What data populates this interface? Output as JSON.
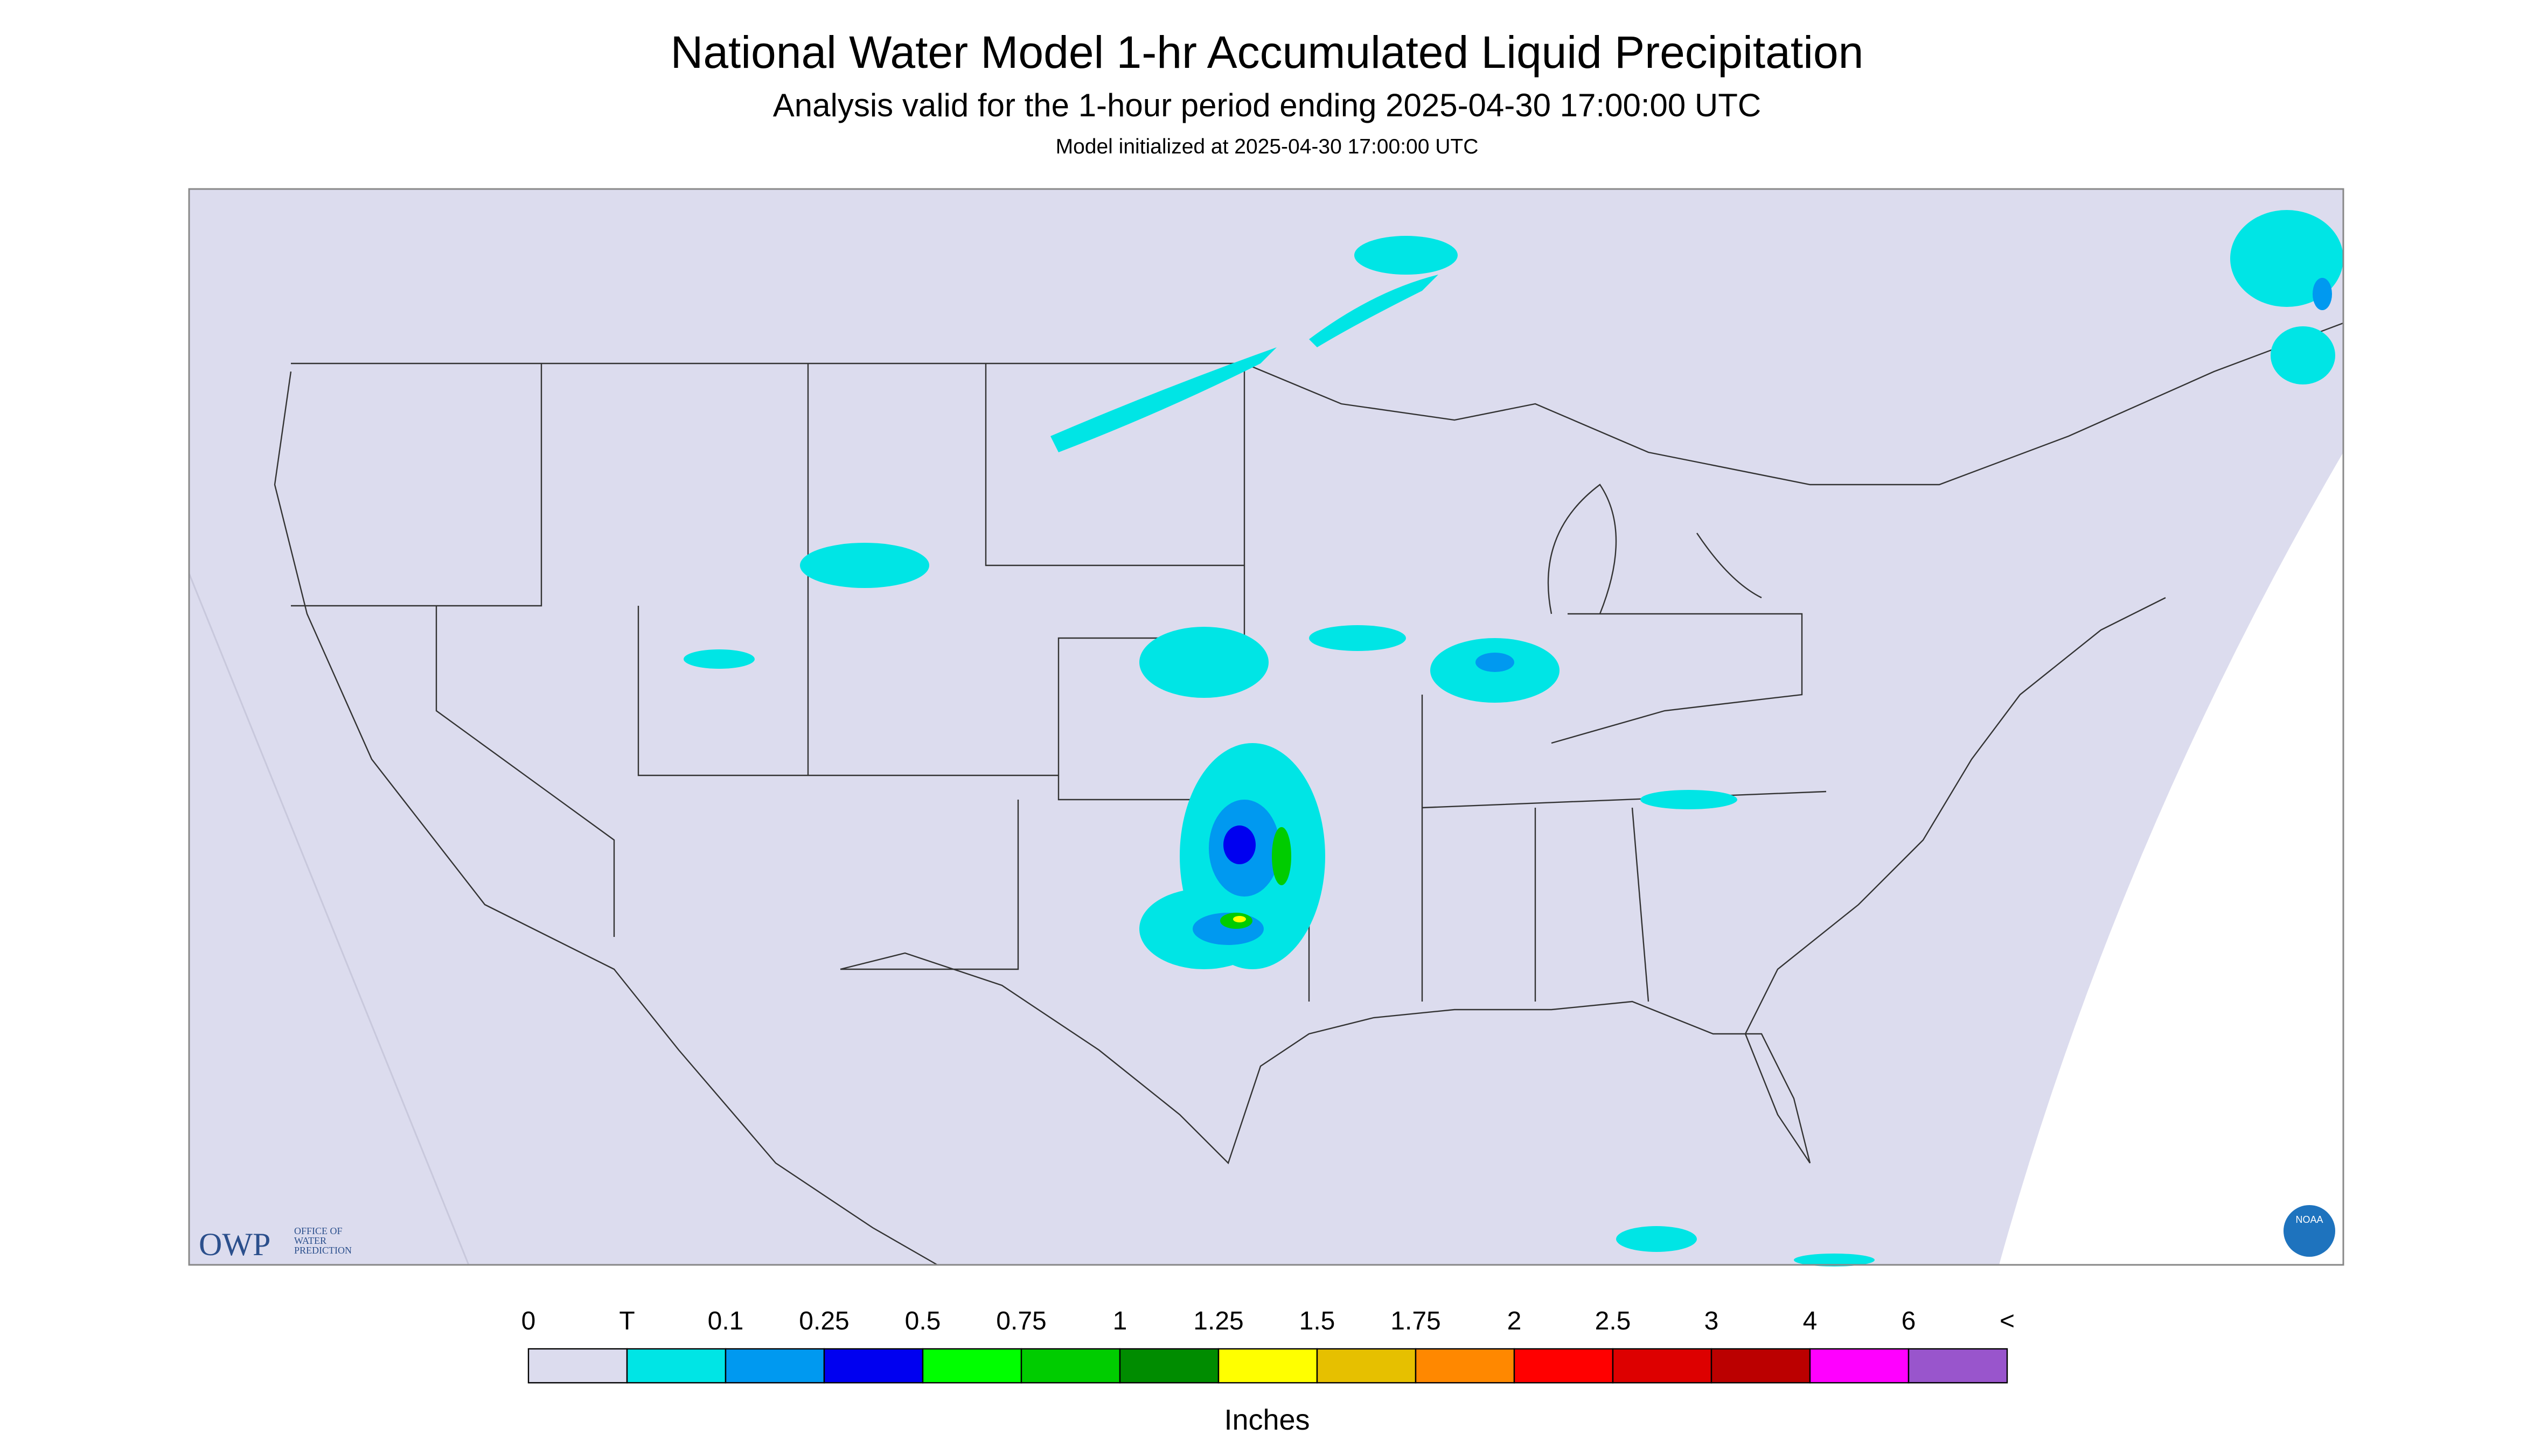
{
  "header": {
    "title": "National Water Model 1-hr Accumulated Liquid Precipitation",
    "subtitle": "Analysis valid for the 1-hour period ending 2025-04-30 17:00:00 UTC",
    "init": "Model initialized at 2025-04-30 17:00:00 UTC"
  },
  "logo": {
    "owp": "OWP",
    "owp_text": [
      "OFFICE OF",
      "WATER",
      "PREDICTION"
    ],
    "noaa": "NOAA"
  },
  "legend": {
    "labels": [
      "0",
      "T",
      "0.1",
      "0.25",
      "0.5",
      "0.75",
      "1",
      "1.25",
      "1.5",
      "1.75",
      "2",
      "2.5",
      "3",
      "4",
      "6",
      "<"
    ],
    "colors": [
      "#dcdcee",
      "#00e5e5",
      "#0099f0",
      "#0000f0",
      "#00ff00",
      "#00cc00",
      "#008c00",
      "#ffff00",
      "#e6c000",
      "#ff8800",
      "#ff0000",
      "#dd0000",
      "#bb0000",
      "#ff00ff",
      "#9955cc"
    ],
    "unit": "Inches"
  }
}
